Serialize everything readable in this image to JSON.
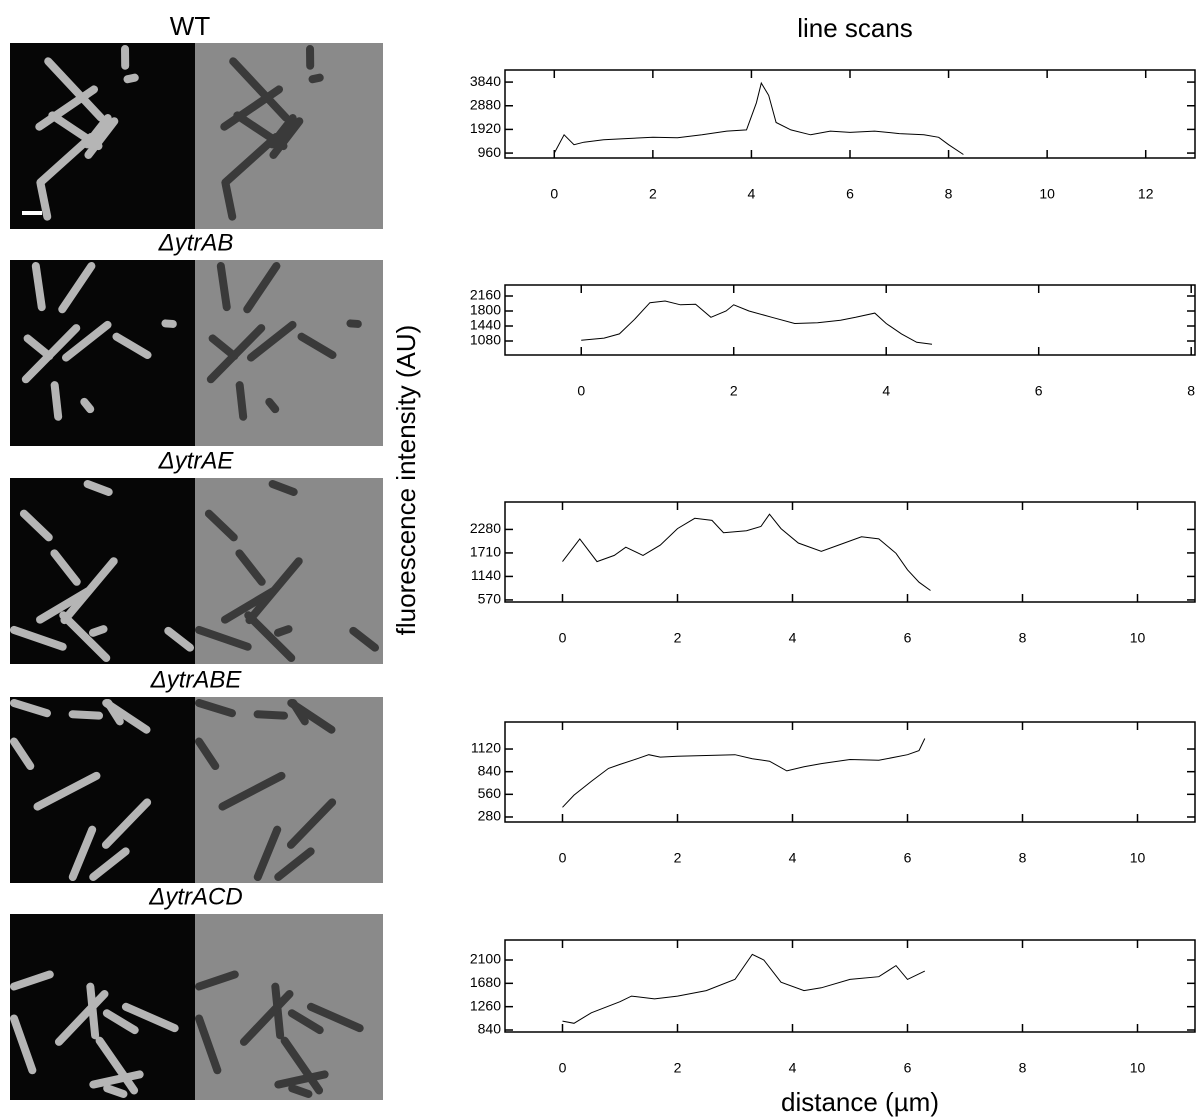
{
  "heading": "line scans",
  "y_label": "fluorescence intensity (AU)",
  "x_label": "distance (µm)",
  "strains": [
    "WT",
    "ΔytrAB",
    "ΔytrAE",
    "ΔytrABE",
    "ΔytrACD"
  ],
  "chart_data": [
    {
      "type": "line",
      "color": "#000000",
      "x": [
        0,
        0.2,
        0.4,
        0.6,
        1,
        1.5,
        2,
        2.5,
        3,
        3.5,
        3.9,
        4.1,
        4.2,
        4.35,
        4.5,
        4.8,
        5.2,
        5.6,
        6,
        6.5,
        7,
        7.5,
        7.8,
        8,
        8.3
      ],
      "values": [
        960,
        1700,
        1300,
        1400,
        1500,
        1550,
        1600,
        1580,
        1700,
        1850,
        1900,
        3000,
        3800,
        3300,
        2200,
        1900,
        1700,
        1850,
        1800,
        1850,
        1750,
        1700,
        1600,
        1300,
        900
      ],
      "xlim": [
        -1,
        13
      ],
      "ylim": [
        760,
        4330
      ],
      "xticks": [
        0,
        2,
        4,
        6,
        8,
        10,
        12
      ],
      "yticks": [
        960,
        1920,
        2880,
        3840
      ]
    },
    {
      "type": "line",
      "color": "#000000",
      "x": [
        0,
        0.3,
        0.5,
        0.7,
        0.9,
        1.1,
        1.3,
        1.5,
        1.7,
        1.9,
        2.0,
        2.2,
        2.5,
        2.8,
        3.1,
        3.4,
        3.6,
        3.85,
        4.0,
        4.2,
        4.4,
        4.6
      ],
      "values": [
        1100,
        1150,
        1250,
        1600,
        2000,
        2040,
        1950,
        1960,
        1650,
        1800,
        1950,
        1800,
        1650,
        1500,
        1520,
        1580,
        1650,
        1750,
        1500,
        1250,
        1050,
        1000
      ],
      "xlim": [
        -1,
        8.05
      ],
      "ylim": [
        744,
        2424
      ],
      "xticks": [
        0,
        2,
        4,
        6,
        8
      ],
      "yticks": [
        1080,
        1440,
        1800,
        2160
      ]
    },
    {
      "type": "line",
      "color": "#000000",
      "x": [
        0,
        0.3,
        0.6,
        0.9,
        1.1,
        1.4,
        1.7,
        2.0,
        2.3,
        2.6,
        2.8,
        3.2,
        3.45,
        3.6,
        3.8,
        4.1,
        4.5,
        4.8,
        5.2,
        5.5,
        5.8,
        6.0,
        6.2,
        6.4
      ],
      "values": [
        1500,
        2050,
        1500,
        1650,
        1850,
        1650,
        1900,
        2300,
        2550,
        2500,
        2200,
        2250,
        2350,
        2650,
        2300,
        1950,
        1750,
        1900,
        2100,
        2050,
        1700,
        1300,
        1000,
        800
      ],
      "xlim": [
        -1,
        11
      ],
      "ylim": [
        520,
        2945
      ],
      "xticks": [
        0,
        2,
        4,
        6,
        8,
        10
      ],
      "yticks": [
        570,
        1140,
        1710,
        2280
      ]
    },
    {
      "type": "line",
      "color": "#000000",
      "x": [
        0,
        0.2,
        0.5,
        0.8,
        1.0,
        1.3,
        1.5,
        1.7,
        2.0,
        2.5,
        3,
        3.3,
        3.6,
        3.9,
        4.2,
        4.5,
        5,
        5.5,
        6,
        6.2,
        6.3
      ],
      "values": [
        400,
        550,
        720,
        880,
        930,
        1000,
        1050,
        1020,
        1030,
        1040,
        1050,
        1000,
        970,
        850,
        900,
        940,
        990,
        980,
        1050,
        1100,
        1250
      ],
      "xlim": [
        -1,
        11
      ],
      "ylim": [
        218,
        1454
      ],
      "xticks": [
        0,
        2,
        4,
        6,
        8,
        10
      ],
      "yticks": [
        280,
        560,
        840,
        1120
      ]
    },
    {
      "type": "line",
      "color": "#000000",
      "x": [
        0,
        0.2,
        0.5,
        1.0,
        1.2,
        1.6,
        2.0,
        2.5,
        3.0,
        3.3,
        3.5,
        3.8,
        4.2,
        4.5,
        5.0,
        5.5,
        5.8,
        6.0,
        6.3
      ],
      "values": [
        1000,
        960,
        1150,
        1350,
        1450,
        1400,
        1450,
        1550,
        1750,
        2200,
        2100,
        1700,
        1550,
        1600,
        1750,
        1800,
        2000,
        1750,
        1900
      ],
      "xlim": [
        -1,
        11
      ],
      "ylim": [
        804,
        2460
      ],
      "xticks": [
        0,
        2,
        4,
        6,
        8,
        10
      ],
      "yticks": [
        840,
        1260,
        1680,
        2100
      ]
    }
  ]
}
